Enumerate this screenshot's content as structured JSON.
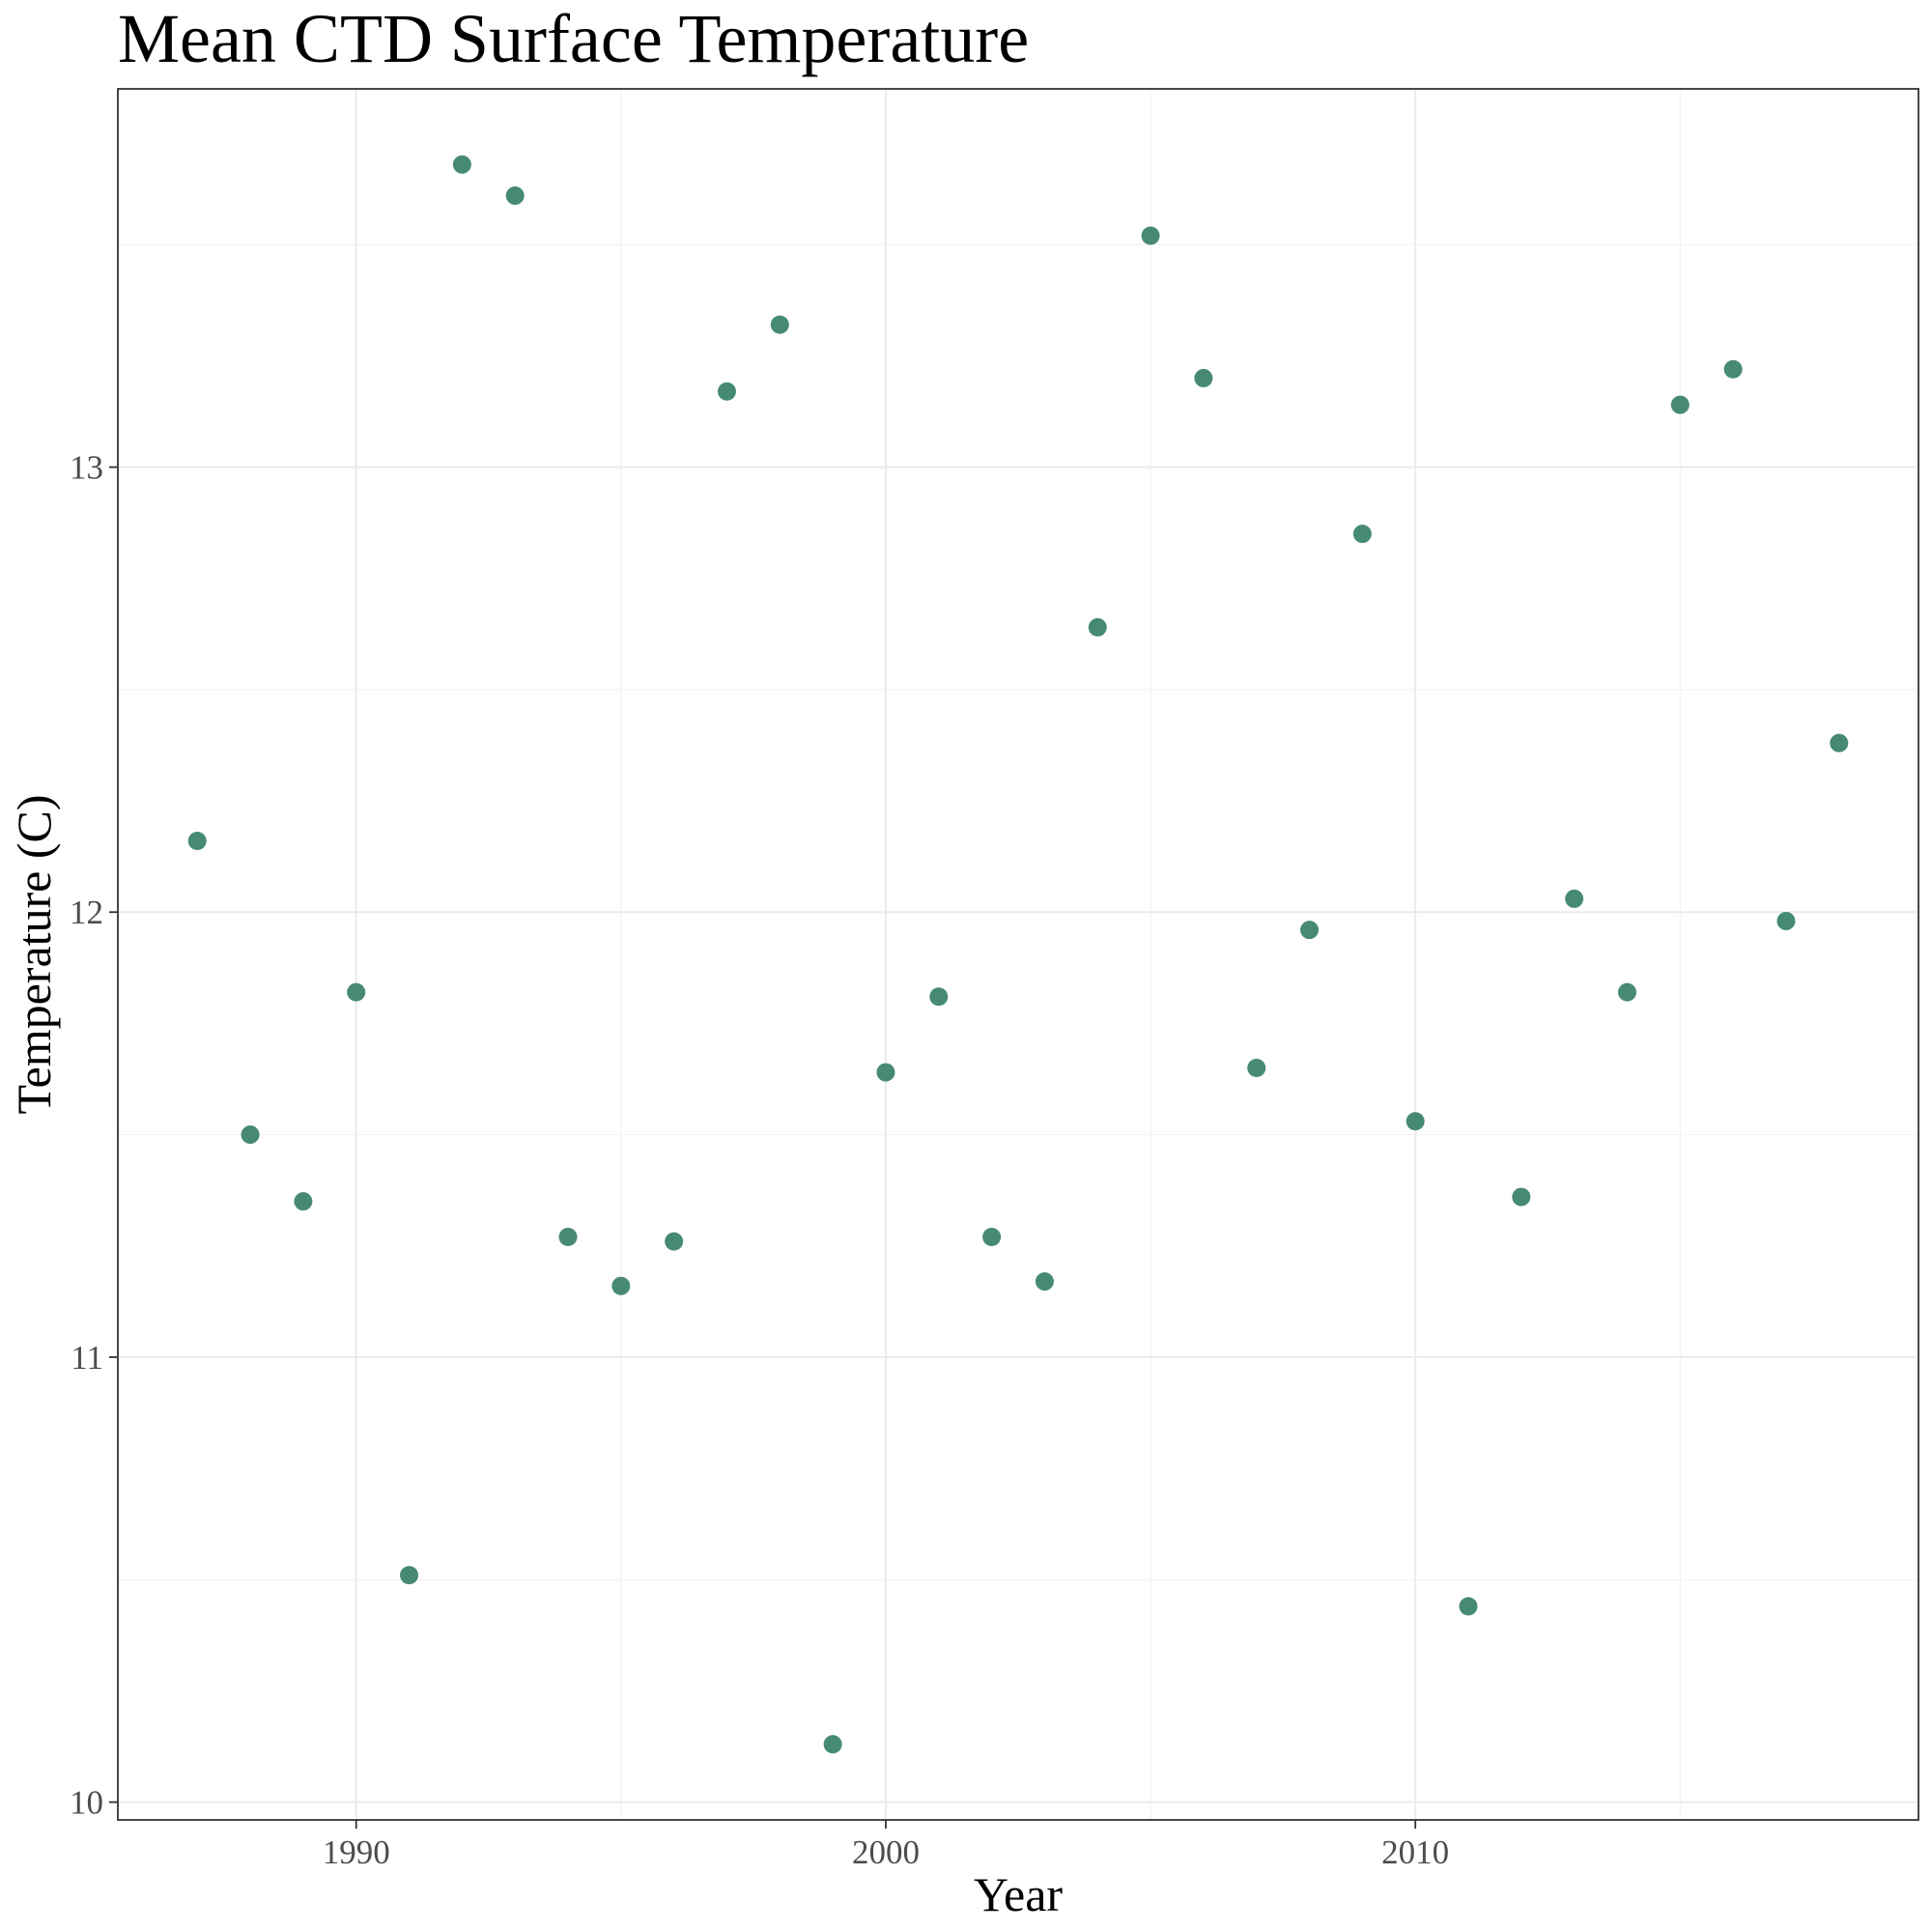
{
  "chart_data": {
    "type": "scatter",
    "title": "Mean CTD Surface Temperature",
    "xlabel": "Year",
    "ylabel": "Temperature (C)",
    "xlim": [
      1985.5,
      2019.5
    ],
    "ylim": [
      9.96,
      13.85
    ],
    "x_ticks": [
      1990,
      2000,
      2010
    ],
    "y_ticks": [
      10,
      11,
      12,
      13
    ],
    "x_minor": [
      1985,
      1995,
      2005,
      2015
    ],
    "y_minor": [
      10.5,
      11.5,
      12.5,
      13.5
    ],
    "grid": true,
    "legend": "none",
    "point_color": "#468a74",
    "x": [
      1987,
      1988,
      1989,
      1990,
      1991,
      1992,
      1993,
      1994,
      1995,
      1996,
      1997,
      1998,
      1999,
      2000,
      2001,
      2002,
      2003,
      2004,
      2005,
      2006,
      2007,
      2008,
      2009,
      2010,
      2011,
      2012,
      2013,
      2014,
      2015,
      2016,
      2017,
      2018
    ],
    "y": [
      12.16,
      11.5,
      11.35,
      11.82,
      10.51,
      13.68,
      13.61,
      11.27,
      11.16,
      11.26,
      13.17,
      13.32,
      10.13,
      11.64,
      11.81,
      11.27,
      11.17,
      12.64,
      13.52,
      13.2,
      11.65,
      11.96,
      12.85,
      11.53,
      10.44,
      11.36,
      12.03,
      11.82,
      13.14,
      13.22,
      11.98,
      12.38
    ]
  }
}
